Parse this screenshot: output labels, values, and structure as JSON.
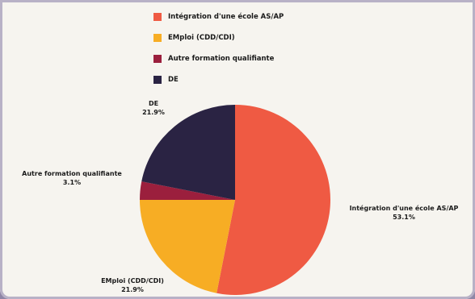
{
  "chart_data": {
    "type": "pie",
    "title": "",
    "legend_position": "top",
    "slices": [
      {
        "label": "Intégration d'une école AS/AP",
        "legend_label": "Intégration d'une école AS/AP",
        "value": 53.1,
        "value_label": "53.1%",
        "color": "#ef5a43"
      },
      {
        "label": "EMploi (CDD/CDI)",
        "legend_label": "EMploi (CDD/CDI)",
        "value": 21.9,
        "value_label": "21.9%",
        "color": "#f7ad24"
      },
      {
        "label": "Autre formation qualifiante",
        "legend_label": "Autre formation qualifiante",
        "value": 3.1,
        "value_label": "3.1%",
        "color": "#9b1f3d"
      },
      {
        "label": "DE",
        "legend_label": "DE",
        "value": 21.9,
        "value_label": "21.9%",
        "color": "#2a2343"
      }
    ]
  }
}
